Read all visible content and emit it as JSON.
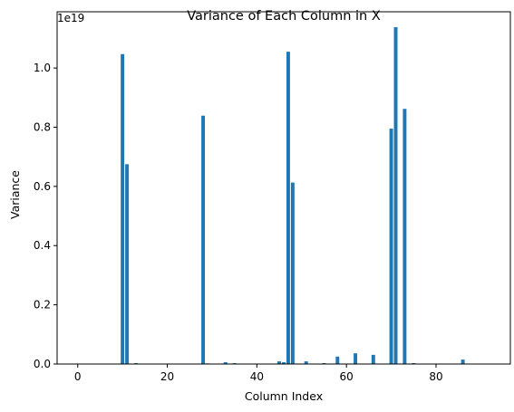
{
  "chart_data": {
    "type": "bar",
    "title": "Variance of Each Column in X",
    "xlabel": "Column Index",
    "ylabel": "Variance",
    "y_offset_label": "1e19",
    "y_scale": "1e19",
    "xlim": [
      -4.6,
      96.6
    ],
    "ylim": [
      0,
      1.19
    ],
    "xticks": [
      0,
      20,
      40,
      60,
      80
    ],
    "yticks": [
      0.0,
      0.2,
      0.4,
      0.6,
      0.8,
      1.0
    ],
    "ytick_labels": [
      "0.0",
      "0.2",
      "0.4",
      "0.6",
      "0.8",
      "1.0"
    ],
    "grid": false,
    "bar_color": "#1f77b4",
    "x": [
      10,
      11,
      13,
      28,
      29,
      33,
      35,
      45,
      46,
      47,
      48,
      51,
      55,
      58,
      62,
      66,
      70,
      71,
      73,
      75,
      86
    ],
    "values": [
      1.047,
      0.675,
      0.003,
      0.839,
      0.002,
      0.006,
      0.003,
      0.009,
      0.006,
      1.055,
      0.613,
      0.009,
      0.003,
      0.025,
      0.036,
      0.031,
      0.795,
      1.138,
      0.862,
      0.003,
      0.015
    ]
  }
}
